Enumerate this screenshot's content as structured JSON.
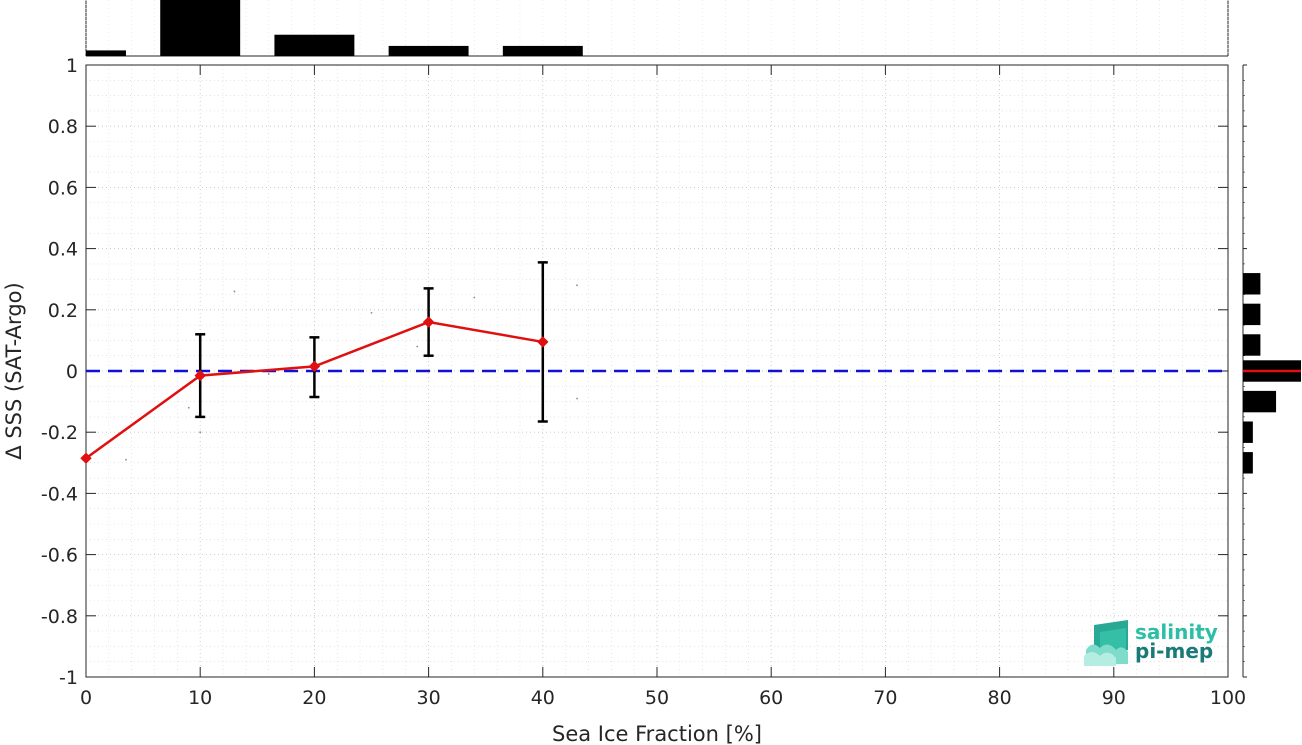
{
  "chart_data": {
    "type": "line",
    "title": "",
    "xlabel": "Sea Ice Fraction [%]",
    "ylabel": "Δ SSS (SAT-Argo)",
    "xlim": [
      0,
      100
    ],
    "ylim": [
      -1,
      1
    ],
    "xticks": [
      0,
      10,
      20,
      30,
      40,
      50,
      60,
      70,
      80,
      90,
      100
    ],
    "yticks": [
      1,
      0.8,
      0.6,
      0.4,
      0.2,
      0,
      -0.2,
      -0.4,
      -0.6,
      -0.8,
      -1
    ],
    "ytick_labels": [
      "1",
      "0.8",
      "0.6",
      "0.4",
      "0.2",
      "0",
      "-0.2",
      "-0.4",
      "-0.6",
      "-0.8",
      "-1"
    ],
    "grid": true,
    "series": [
      {
        "x": [
          0,
          10,
          20,
          30,
          40
        ],
        "y": [
          -0.285,
          -0.015,
          0.015,
          0.16,
          0.095
        ],
        "yerr_low": [
          -0.285,
          -0.15,
          -0.085,
          0.05,
          -0.165
        ],
        "yerr_high": [
          -0.285,
          0.12,
          0.11,
          0.27,
          0.355
        ],
        "color": "#e01010",
        "marker": "diamond"
      }
    ],
    "reference_line": {
      "y": 0,
      "color": "#1010d8",
      "style": "dashed"
    },
    "scatter_points": [
      [
        3.5,
        -0.29
      ],
      [
        9,
        -0.12
      ],
      [
        10,
        -0.2
      ],
      [
        13,
        0.26
      ],
      [
        16,
        -0.01
      ],
      [
        25,
        0.19
      ],
      [
        29,
        0.08
      ],
      [
        34,
        0.24
      ],
      [
        43,
        0.28
      ],
      [
        43,
        -0.09
      ]
    ],
    "top_histogram": {
      "bin_edges": [
        0,
        3.5,
        6.5,
        13.5,
        16.5,
        23.5,
        26.5,
        33.5,
        36.5,
        43.5
      ],
      "bars": [
        {
          "x0": 0,
          "x1": 3.5,
          "h": 0.1
        },
        {
          "x0": 6.5,
          "x1": 13.5,
          "h": 1.0
        },
        {
          "x0": 16.5,
          "x1": 23.5,
          "h": 0.38
        },
        {
          "x0": 26.5,
          "x1": 33.5,
          "h": 0.18
        },
        {
          "x0": 36.5,
          "x1": 43.5,
          "h": 0.18
        }
      ]
    },
    "right_histogram": {
      "bars": [
        {
          "y0": 0.25,
          "y1": 0.32,
          "w": 0.3
        },
        {
          "y0": 0.15,
          "y1": 0.22,
          "w": 0.3
        },
        {
          "y0": 0.05,
          "y1": 0.12,
          "w": 0.3
        },
        {
          "y0": -0.035,
          "y1": 0.035,
          "w": 1.0
        },
        {
          "y0": -0.135,
          "y1": -0.065,
          "w": 0.57
        },
        {
          "y0": -0.235,
          "y1": -0.165,
          "w": 0.17
        },
        {
          "y0": -0.335,
          "y1": -0.265,
          "w": 0.17
        }
      ],
      "median_line": {
        "y": 0,
        "color": "#e01010"
      }
    }
  },
  "logo": {
    "line1": "salinity",
    "line2": "pi-mep",
    "color1": "#2bbfa5",
    "color2": "#1a7a78"
  }
}
